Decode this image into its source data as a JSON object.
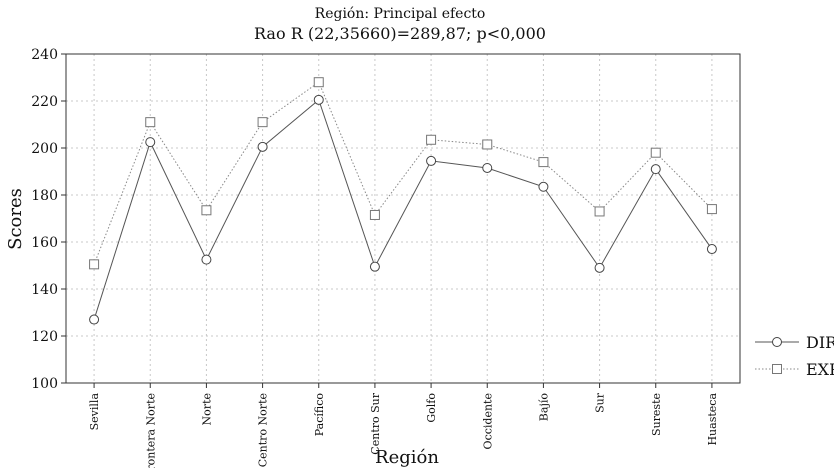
{
  "chart_data": {
    "type": "line",
    "title": "Región: Principal efecto",
    "subtitle": "Rao R (22,35660)=289,87; p<0,000",
    "xlabel": "Región",
    "ylabel": "Scores",
    "ylim": [
      100,
      240
    ],
    "yticks": [
      100,
      120,
      140,
      160,
      180,
      200,
      220,
      240
    ],
    "grid": true,
    "legend_position": "right",
    "categories": [
      "Sevilla",
      "Frontera Norte",
      "Norte",
      "Centro Norte",
      "Pacífico",
      "Centro Sur",
      "Golfo",
      "Occidente",
      "Bajío",
      "Sur",
      "Sureste",
      "Huasteca"
    ],
    "series": [
      {
        "name": "DIR",
        "marker": "circle",
        "line": "solid",
        "color": "#555555",
        "values": [
          127,
          202.5,
          152.5,
          200.5,
          220.5,
          149.5,
          194.5,
          191.5,
          183.5,
          149,
          191,
          157
        ]
      },
      {
        "name": "EXP",
        "marker": "square",
        "line": "dotted",
        "color": "#888888",
        "values": [
          150.5,
          211,
          173.5,
          211,
          228,
          171.5,
          203.5,
          201.5,
          194,
          173,
          198,
          174
        ]
      }
    ]
  }
}
